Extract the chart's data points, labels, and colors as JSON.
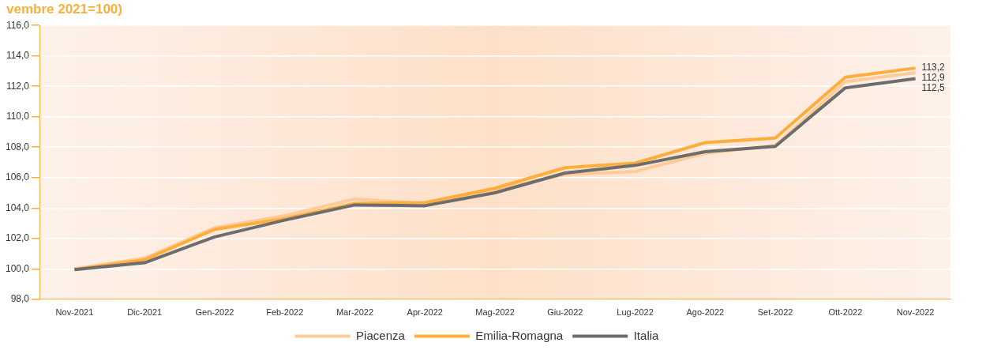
{
  "chart_data": {
    "type": "line",
    "title": "vembre 2021=100)",
    "categories": [
      "Nov-2021",
      "Dic-2021",
      "Gen-2022",
      "Feb-2022",
      "Mar-2022",
      "Apr-2022",
      "Mag-2022",
      "Giu-2022",
      "Lug-2022",
      "Ago-2022",
      "Set-2022",
      "Ott-2022",
      "Nov-2022"
    ],
    "series": [
      {
        "name": "Piacenza",
        "color": "#ffcc99",
        "values": [
          100.0,
          100.7,
          102.7,
          103.5,
          104.6,
          104.3,
          105.2,
          106.2,
          106.4,
          107.6,
          108.1,
          112.3,
          112.9
        ],
        "value_labels": [
          null,
          null,
          null,
          null,
          null,
          null,
          null,
          null,
          null,
          null,
          null,
          null,
          "112,9"
        ]
      },
      {
        "name": "Emilia-Romagna",
        "color": "#ffad3b",
        "values": [
          99.95,
          100.6,
          102.6,
          103.3,
          104.3,
          104.35,
          105.3,
          106.65,
          106.95,
          108.3,
          108.6,
          112.6,
          113.2
        ],
        "value_labels": [
          null,
          null,
          null,
          null,
          null,
          null,
          null,
          null,
          null,
          null,
          null,
          null,
          "113,2"
        ]
      },
      {
        "name": "Italia",
        "color": "#6d6d6d",
        "values": [
          99.95,
          100.4,
          102.1,
          103.2,
          104.2,
          104.15,
          105.0,
          106.3,
          106.8,
          107.7,
          108.05,
          111.9,
          112.5
        ],
        "value_labels": [
          null,
          null,
          null,
          null,
          null,
          null,
          null,
          null,
          null,
          null,
          null,
          null,
          "112,5"
        ]
      }
    ],
    "ylim": [
      98,
      116
    ],
    "yticks": [
      {
        "value": 98,
        "label": "98,0"
      },
      {
        "value": 100,
        "label": "100,0"
      },
      {
        "value": 102,
        "label": "102,0"
      },
      {
        "value": 104,
        "label": "104,0"
      },
      {
        "value": 106,
        "label": "106,0"
      },
      {
        "value": 108,
        "label": "108,0"
      },
      {
        "value": 110,
        "label": "110,0"
      },
      {
        "value": 112,
        "label": "112,0"
      },
      {
        "value": 114,
        "label": "114,0"
      },
      {
        "value": 116,
        "label": "116,0"
      }
    ],
    "grid": "y",
    "legend": "bottom",
    "marker": "none",
    "line_style": "solid"
  }
}
